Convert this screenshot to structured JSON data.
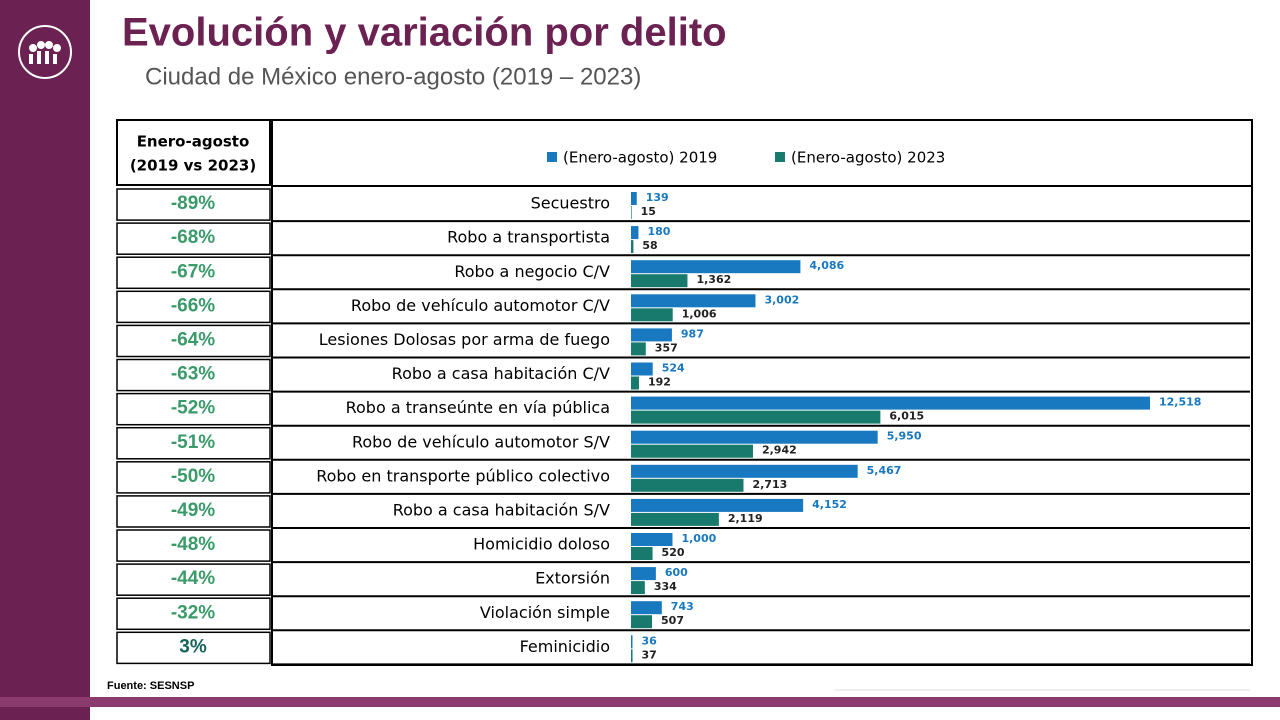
{
  "title": "Evolución y variación por delito",
  "subtitle": "Ciudad de México enero-agosto (2019 – 2023)",
  "variation": {
    "header": [
      "Enero-agosto",
      "(2019 vs 2023)"
    ],
    "values": [
      -89,
      -68,
      -67,
      -66,
      -64,
      -63,
      -52,
      -51,
      -50,
      -49,
      -48,
      -44,
      -32,
      3
    ],
    "value_labels": [
      "-89%",
      "-68%",
      "-67%",
      "-66%",
      "-64%",
      "-63%",
      "-52%",
      "-51%",
      "-50%",
      "-49%",
      "-48%",
      "-44%",
      "-32%",
      "3%"
    ]
  },
  "chart_data": {
    "type": "bar",
    "orientation": "horizontal",
    "categories": [
      "Secuestro",
      "Robo a transportista",
      "Robo a negocio C/V",
      "Robo de vehículo automotor C/V",
      "Lesiones Dolosas por arma de fuego",
      "Robo a casa habitación C/V",
      "Robo a transeúnte en vía pública",
      "Robo de vehículo automotor S/V",
      "Robo en transporte público colectivo",
      "Robo a casa habitación S/V",
      "Homicidio doloso",
      "Extorsión",
      "Violación simple",
      "Feminicidio"
    ],
    "series": [
      {
        "name": "(Enero-agosto) 2019",
        "color": "#1878c0",
        "values": [
          139,
          180,
          4086,
          3002,
          987,
          524,
          12518,
          5950,
          5467,
          4152,
          1000,
          600,
          743,
          36
        ],
        "value_labels": [
          "139",
          "180",
          "4,086",
          "3,002",
          "987",
          "524",
          "12,518",
          "5,950",
          "5,467",
          "4,152",
          "1,000",
          "600",
          "743",
          "36"
        ]
      },
      {
        "name": "(Enero-agosto) 2023",
        "color": "#177a6c",
        "values": [
          15,
          58,
          1362,
          1006,
          357,
          192,
          6015,
          2942,
          2713,
          2119,
          520,
          334,
          507,
          37
        ],
        "value_labels": [
          "15",
          "58",
          "1,362",
          "1,006",
          "357",
          "192",
          "6,015",
          "2,942",
          "2,713",
          "2,119",
          "520",
          "334",
          "507",
          "37"
        ]
      }
    ],
    "legend": "top"
  },
  "source": "Fuente: SESNSP"
}
